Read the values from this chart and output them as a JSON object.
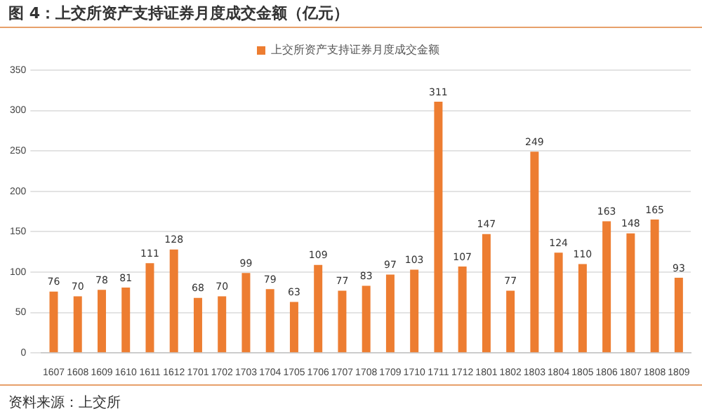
{
  "chart_data": {
    "type": "bar",
    "title": "图 4：上交所资产支持证券月度成交金额（亿元）",
    "categories": [
      "1607",
      "1608",
      "1609",
      "1610",
      "1611",
      "1612",
      "1701",
      "1702",
      "1703",
      "1704",
      "1705",
      "1706",
      "1707",
      "1708",
      "1709",
      "1710",
      "1711",
      "1712",
      "1801",
      "1802",
      "1803",
      "1804",
      "1805",
      "1806",
      "1807",
      "1808",
      "1809"
    ],
    "series": [
      {
        "name": "上交所资产支持证券月度成交金额",
        "color": "#ed7d31",
        "values": [
          76,
          70,
          78,
          81,
          111,
          128,
          68,
          70,
          99,
          79,
          63,
          109,
          77,
          83,
          97,
          103,
          311,
          107,
          147,
          77,
          249,
          124,
          110,
          163,
          148,
          165,
          93
        ]
      }
    ],
    "ylim": [
      0,
      350
    ],
    "yticks": [
      0,
      50,
      100,
      150,
      200,
      250,
      300,
      350
    ],
    "grid": "y",
    "legend": "top",
    "data_labels": true,
    "annotations": [
      "资料来源：上交所"
    ]
  }
}
